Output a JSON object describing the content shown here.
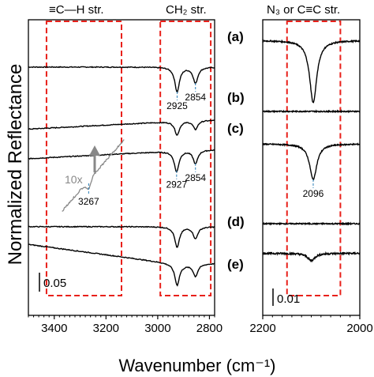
{
  "chart_data": {
    "type": "line",
    "ylabel": "Normalized Reflectance",
    "xlabel": "Wavenumber (cm⁻¹)",
    "panels": [
      {
        "id": "left",
        "xlim": [
          3500,
          2780
        ],
        "ticks": [
          3400,
          3200,
          3000,
          2800
        ],
        "tick_labels": [
          "3400",
          "3200",
          "3000",
          "2800"
        ],
        "scale_bar_label": "0.05",
        "regions": [
          {
            "label": "≡C—H str.",
            "x_range": [
              3430,
              3140
            ]
          },
          {
            "label": "CH₂ str.",
            "x_range": [
              2990,
              2795
            ]
          }
        ],
        "series": [
          {
            "name": "(a)",
            "offset": 0.84,
            "baseline": "flat",
            "noise": 0.003,
            "peaks": [
              {
                "x": 2925,
                "depth": 0.083
              },
              {
                "x": 2854,
                "depth": 0.054
              }
            ]
          },
          {
            "name": "(b)",
            "offset": 0.66,
            "baseline": "rising",
            "noise": 0.003,
            "peaks": [
              {
                "x": 2925,
                "depth": 0.046
              },
              {
                "x": 2854,
                "depth": 0.03
              }
            ]
          },
          {
            "name": "(c)",
            "offset": 0.56,
            "baseline": "rising",
            "noise": 0.003,
            "peaks": [
              {
                "x": 2927,
                "depth": 0.07
              },
              {
                "x": 2854,
                "depth": 0.046
              }
            ]
          },
          {
            "name": "(d)",
            "offset": 0.3,
            "baseline": "flat",
            "noise": 0.003,
            "peaks": [
              {
                "x": 2925,
                "depth": 0.07
              },
              {
                "x": 2854,
                "depth": 0.04
              }
            ]
          },
          {
            "name": "(e)",
            "offset": 0.22,
            "baseline": "sloping_down",
            "noise": 0.003,
            "peaks": [
              {
                "x": 2925,
                "depth": 0.07
              },
              {
                "x": 2854,
                "depth": 0.04
              }
            ]
          }
        ],
        "inset": {
          "label": "10x",
          "peak_label": "3267",
          "x_range": [
            3370,
            3130
          ],
          "peak_x": 3267,
          "color": "#888888"
        }
      },
      {
        "id": "right",
        "xlim": [
          2200,
          2000
        ],
        "ticks": [
          2200,
          2000
        ],
        "tick_labels": [
          "2200",
          "2000"
        ],
        "scale_bar_label": "0.01",
        "regions": [
          {
            "label": "N₃ or C≡C str.",
            "x_range": [
              2150,
              2040
            ]
          }
        ],
        "series": [
          {
            "name": "(a)",
            "offset": 0.93,
            "noise": 0.004,
            "peaks": [
              {
                "x": 2096,
                "depth": 0.21
              }
            ]
          },
          {
            "name": "(b)",
            "offset": 0.69,
            "noise": 0.004,
            "peaks": []
          },
          {
            "name": "(c)",
            "offset": 0.58,
            "noise": 0.004,
            "peaks": [
              {
                "x": 2096,
                "depth": 0.12
              }
            ]
          },
          {
            "name": "(d)",
            "offset": 0.31,
            "noise": 0.004,
            "peaks": []
          },
          {
            "name": "(e)",
            "offset": 0.21,
            "noise": 0.006,
            "peaks": [
              {
                "x": 2100,
                "depth": 0.025
              }
            ]
          }
        ]
      }
    ],
    "peak_labels": [
      {
        "panel": "left",
        "series": "(a)",
        "x": 2925,
        "label": "2925"
      },
      {
        "panel": "left",
        "series": "(a)",
        "x": 2854,
        "label": "2854"
      },
      {
        "panel": "left",
        "series": "(c)",
        "x": 2927,
        "label": "2927"
      },
      {
        "panel": "left",
        "series": "(c)",
        "x": 2854,
        "label": "2854"
      },
      {
        "panel": "right",
        "series": "(c)",
        "x": 2096,
        "label": "2096"
      }
    ],
    "colors": {
      "trace": "#000000",
      "region_box": "#e8201a",
      "guide_line": "#2a7fb8",
      "inset": "#888888"
    }
  }
}
